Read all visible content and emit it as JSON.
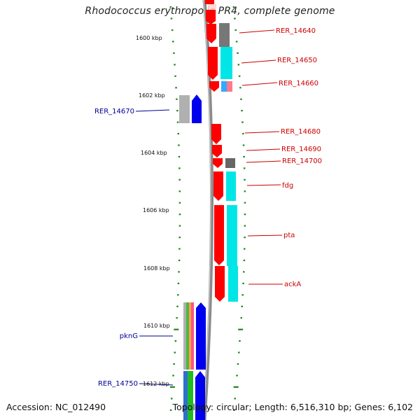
{
  "title": "Rhodococcus erythropolis PR4, complete genome",
  "footer": {
    "accession": "Accession: NC_012490",
    "summary": "Topology: circular; Length: 6,516,310 bp; Genes: 6,102"
  },
  "colors": {
    "forward_gene": "#ff0000",
    "reverse_gene": "#0000ff",
    "feature_cyan": "#00e6e6",
    "feature_gray": "#777777",
    "feature_lightgray": "#b0b0b0",
    "backbone": "#8a8a8a",
    "tick": "#1a8a1a",
    "label_red": "#cc0000",
    "label_blue": "#000099"
  },
  "scale_labels": [
    "1600 kbp",
    "1602 kbp",
    "1604 kbp",
    "1606 kbp",
    "1608 kbp",
    "1610 kbp",
    "1612 kbp"
  ],
  "gene_labels": {
    "right": [
      "RER_14640",
      "RER_14650",
      "RER_14660",
      "RER_14680",
      "RER_14690",
      "RER_14700",
      "fdg",
      "pta",
      "ackA"
    ],
    "left": [
      "RER_14670",
      "pknG",
      "RER_14750"
    ]
  }
}
